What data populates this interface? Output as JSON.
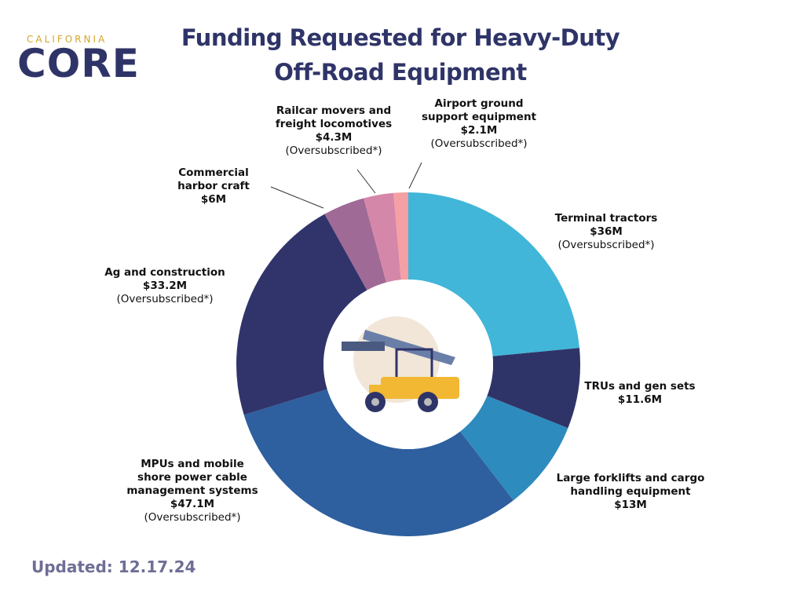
{
  "logo": {
    "top": "CALIFORNIA",
    "main": "CORE"
  },
  "footer": "Updated: 12.17.24",
  "chart_data": {
    "type": "donut",
    "title": "Funding Requested for Heavy-Duty\nOff-Road Equipment",
    "categories": [
      "Terminal tractors",
      "TRUs and gen sets",
      "Large forklifts and cargo\nhandling equipment",
      "MPUs and mobile\nshore power cable\nmanagement systems",
      "Ag and construction",
      "Commercial\nharbor craft",
      "Railcar movers and\nfreight locomotives",
      "Airport ground\nsupport equipment"
    ],
    "values": [
      36,
      11.6,
      13,
      47.1,
      33.2,
      6,
      4.3,
      2.1
    ],
    "value_labels": [
      "$36M",
      "$11.6M",
      "$13M",
      "$47.1M",
      "$33.2M",
      "$6M",
      "$4.3M",
      "$2.1M"
    ],
    "notes": [
      "(Oversubscribed*)",
      null,
      null,
      "(Oversubscribed*)",
      "(Oversubscribed*)",
      null,
      "(Oversubscribed*)",
      "(Oversubscribed*)"
    ],
    "colors": [
      "#41b6d8",
      "#2f3468",
      "#2e8bbd",
      "#2e5f9e",
      "#31346b",
      "#a06a96",
      "#d487a8",
      "#f4a0a4"
    ]
  }
}
